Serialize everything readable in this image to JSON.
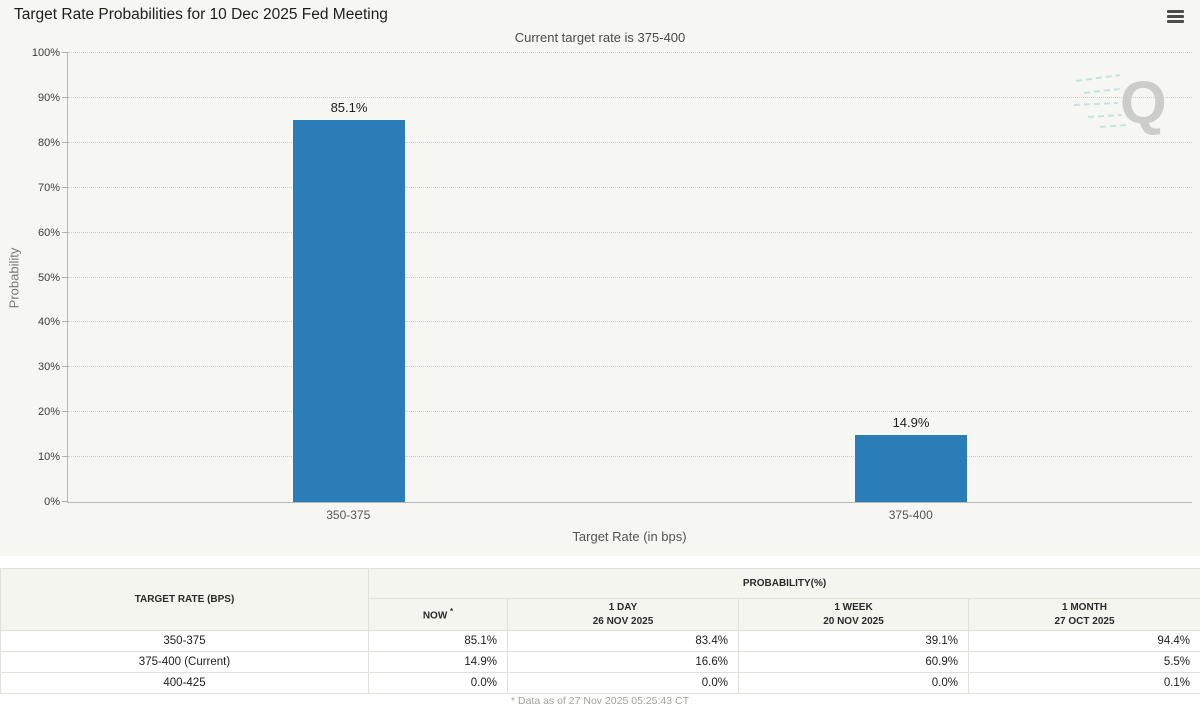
{
  "header": {
    "title": "Target Rate Probabilities for 10 Dec 2025 Fed Meeting",
    "subtitle": "Current target rate is 375-400",
    "menu_icon": "hamburger-icon"
  },
  "chart_data": {
    "type": "bar",
    "title": "Target Rate Probabilities for 10 Dec 2025 Fed Meeting",
    "subtitle": "Current target rate is 375-400",
    "categories": [
      "350-375",
      "375-400"
    ],
    "values": [
      85.1,
      14.9
    ],
    "value_labels": [
      "85.1%",
      "14.9%"
    ],
    "xlabel": "Target Rate (in bps)",
    "ylabel": "Probability",
    "ylim": [
      0,
      100
    ],
    "ytick_step": 10,
    "ytick_suffix": "%",
    "grid": "horizontal dotted",
    "legend": "none",
    "bar_color": "#2b7db8",
    "watermark_letter": "Q"
  },
  "table": {
    "col1_header": "TARGET RATE (BPS)",
    "group_header": "PROBABILITY(%)",
    "columns": [
      {
        "label": "NOW",
        "sup": "*",
        "sub": ""
      },
      {
        "label": "1 DAY",
        "sub": "26 NOV 2025"
      },
      {
        "label": "1 WEEK",
        "sub": "20 NOV 2025"
      },
      {
        "label": "1 MONTH",
        "sub": "27 OCT 2025"
      }
    ],
    "rows": [
      {
        "target": "350-375",
        "now": "85.1%",
        "day": "83.4%",
        "week": "39.1%",
        "month": "94.4%"
      },
      {
        "target": "375-400 (Current)",
        "now": "14.9%",
        "day": "16.6%",
        "week": "60.9%",
        "month": "5.5%"
      },
      {
        "target": "400-425",
        "now": "0.0%",
        "day": "0.0%",
        "week": "0.0%",
        "month": "0.1%"
      }
    ],
    "highlight_color": "#fafad2"
  },
  "footer": {
    "note": "* Data as of 27 Nov 2025 05:25:43 CT"
  }
}
